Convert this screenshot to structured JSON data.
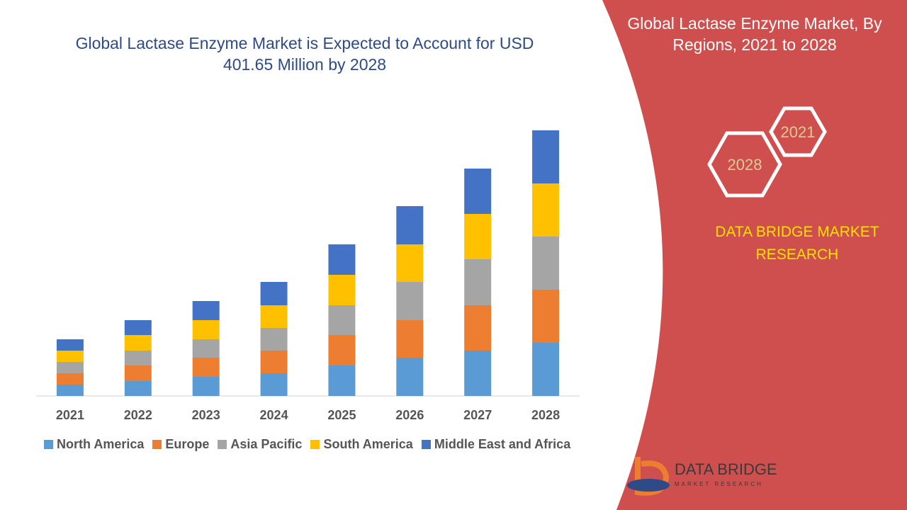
{
  "chart_data": {
    "type": "stacked_bar",
    "title": "Global Lactase Enzyme Market is Expected to Account for USD 401.65 Million by 2028",
    "categories": [
      "2021",
      "2022",
      "2023",
      "2024",
      "2025",
      "2026",
      "2027",
      "2028"
    ],
    "series": [
      {
        "name": "North America",
        "color": "#5b9bd5",
        "values": [
          16,
          21,
          27,
          32,
          43,
          54,
          64,
          75
        ]
      },
      {
        "name": "Europe",
        "color": "#ed7d31",
        "values": [
          16,
          22,
          27,
          32,
          43,
          53,
          64,
          75
        ]
      },
      {
        "name": "Asia Pacific",
        "color": "#a5a5a5",
        "values": [
          16,
          21,
          26,
          32,
          42,
          54,
          65,
          75
        ]
      },
      {
        "name": "South America",
        "color": "#ffc000",
        "values": [
          16,
          22,
          27,
          32,
          43,
          53,
          64,
          75
        ]
      },
      {
        "name": "Middle East and Africa",
        "color": "#4472c4",
        "values": [
          16,
          21,
          27,
          33,
          43,
          54,
          64,
          75
        ]
      }
    ],
    "ylim": [
      0,
      375
    ],
    "legend": "bottom"
  },
  "panel": {
    "title": "Global Lactase Enzyme Market, By Regions, 2021 to 2028",
    "hex_start": "2021",
    "hex_end": "2028",
    "brand": "DATA BRIDGE MARKET RESEARCH",
    "logo_name": "DATA BRIDGE",
    "logo_sub": "MARKET RESEARCH"
  }
}
